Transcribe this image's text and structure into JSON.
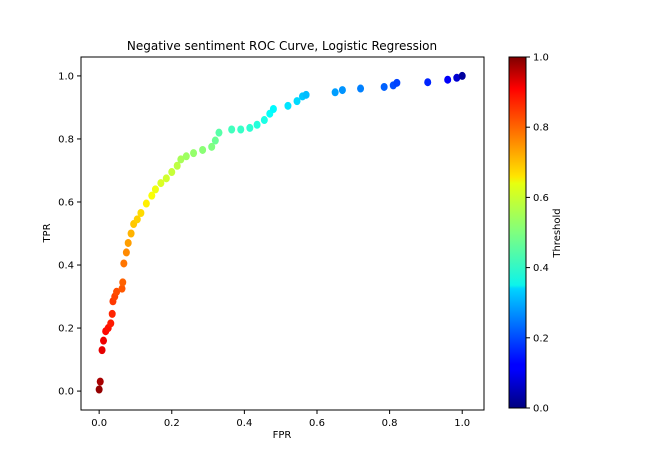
{
  "chart_data": {
    "type": "scatter",
    "title": "Negative sentiment ROC Curve, Logistic Regression",
    "xlabel": "FPR",
    "ylabel": "TPR",
    "xlim": [
      -0.05,
      1.06
    ],
    "ylim": [
      -0.06,
      1.06
    ],
    "xticks": [
      "0.0",
      "0.2",
      "0.4",
      "0.6",
      "0.8",
      "1.0"
    ],
    "yticks": [
      "0.0",
      "0.2",
      "0.4",
      "0.6",
      "0.8",
      "1.0"
    ],
    "colorbar": {
      "label": "Threshold",
      "colormap": "jet",
      "range": [
        0.0,
        1.0
      ],
      "ticks": [
        "0.0",
        "0.2",
        "0.4",
        "0.6",
        "0.8",
        "1.0"
      ]
    },
    "points": [
      [
        0.0,
        0.005,
        0.98
      ],
      [
        0.003,
        0.03,
        0.96
      ],
      [
        0.008,
        0.13,
        0.9
      ],
      [
        0.012,
        0.16,
        0.89
      ],
      [
        0.018,
        0.19,
        0.87
      ],
      [
        0.025,
        0.2,
        0.86
      ],
      [
        0.032,
        0.215,
        0.85
      ],
      [
        0.036,
        0.245,
        0.84
      ],
      [
        0.038,
        0.285,
        0.82
      ],
      [
        0.043,
        0.3,
        0.81
      ],
      [
        0.048,
        0.315,
        0.8
      ],
      [
        0.063,
        0.325,
        0.79
      ],
      [
        0.065,
        0.345,
        0.78
      ],
      [
        0.068,
        0.405,
        0.76
      ],
      [
        0.075,
        0.44,
        0.74
      ],
      [
        0.08,
        0.47,
        0.72
      ],
      [
        0.088,
        0.5,
        0.7
      ],
      [
        0.095,
        0.53,
        0.68
      ],
      [
        0.105,
        0.545,
        0.67
      ],
      [
        0.115,
        0.565,
        0.66
      ],
      [
        0.13,
        0.595,
        0.64
      ],
      [
        0.145,
        0.62,
        0.62
      ],
      [
        0.155,
        0.64,
        0.61
      ],
      [
        0.17,
        0.66,
        0.59
      ],
      [
        0.185,
        0.675,
        0.58
      ],
      [
        0.2,
        0.695,
        0.57
      ],
      [
        0.215,
        0.715,
        0.56
      ],
      [
        0.225,
        0.735,
        0.54
      ],
      [
        0.24,
        0.745,
        0.53
      ],
      [
        0.26,
        0.755,
        0.52
      ],
      [
        0.285,
        0.765,
        0.51
      ],
      [
        0.31,
        0.775,
        0.5
      ],
      [
        0.32,
        0.795,
        0.48
      ],
      [
        0.33,
        0.82,
        0.46
      ],
      [
        0.365,
        0.83,
        0.44
      ],
      [
        0.39,
        0.83,
        0.43
      ],
      [
        0.415,
        0.835,
        0.42
      ],
      [
        0.435,
        0.845,
        0.41
      ],
      [
        0.455,
        0.86,
        0.4
      ],
      [
        0.47,
        0.88,
        0.38
      ],
      [
        0.48,
        0.895,
        0.37
      ],
      [
        0.52,
        0.905,
        0.35
      ],
      [
        0.545,
        0.92,
        0.34
      ],
      [
        0.56,
        0.935,
        0.32
      ],
      [
        0.57,
        0.94,
        0.31
      ],
      [
        0.65,
        0.948,
        0.28
      ],
      [
        0.67,
        0.955,
        0.27
      ],
      [
        0.72,
        0.96,
        0.25
      ],
      [
        0.785,
        0.965,
        0.22
      ],
      [
        0.81,
        0.97,
        0.2
      ],
      [
        0.82,
        0.978,
        0.19
      ],
      [
        0.905,
        0.98,
        0.16
      ],
      [
        0.96,
        0.988,
        0.12
      ],
      [
        0.985,
        0.994,
        0.08
      ],
      [
        1.0,
        1.0,
        0.03
      ]
    ]
  }
}
